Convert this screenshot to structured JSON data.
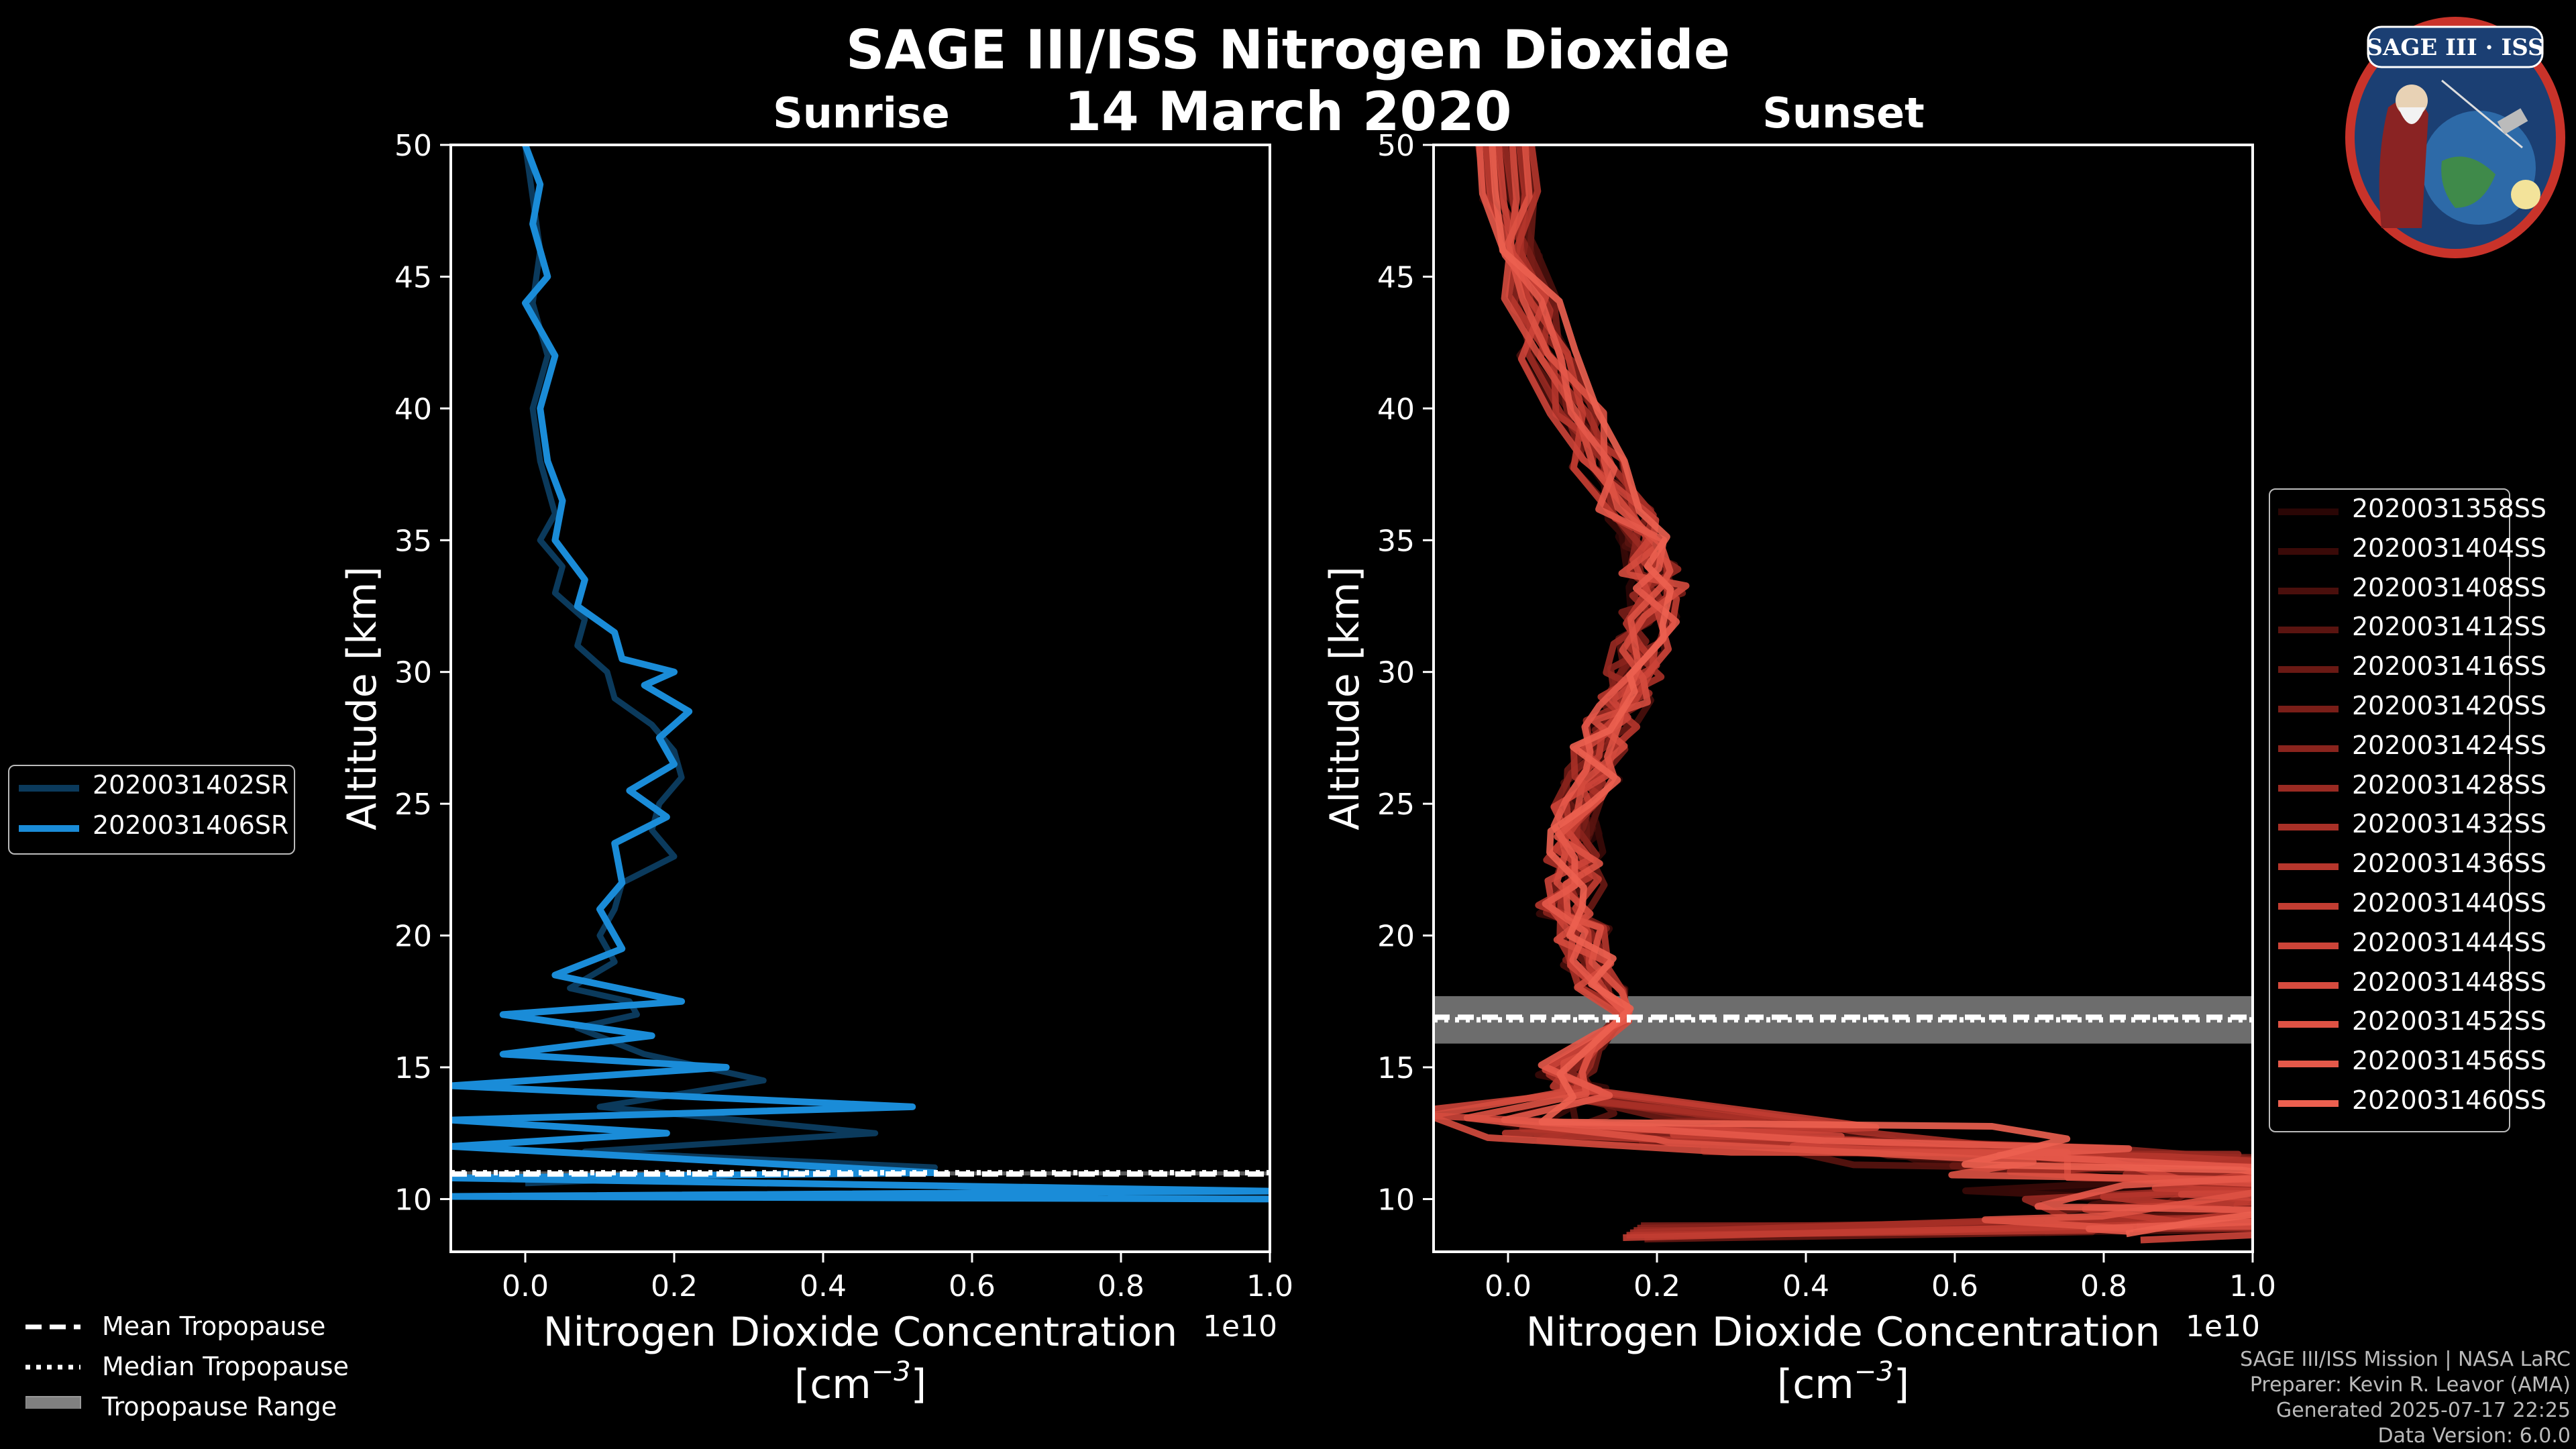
{
  "title": "SAGE III/ISS Nitrogen Dioxide",
  "date": "14 March 2020",
  "credits": {
    "mission": "SAGE III/ISS Mission | NASA LaRC",
    "preparer": "Preparer: Kevin R. Leavor (AMA)",
    "generated": "Generated 2025-07-17 22:25",
    "version": "Data Version: 6.0.0"
  },
  "logo": {
    "name": "SAGE III · ISS",
    "icon": "mission-patch"
  },
  "tropopause_legend": [
    "Mean Tropopause",
    "Median Tropopause",
    "Tropopause Range"
  ],
  "chart_data": [
    {
      "type": "line",
      "title": "Sunrise",
      "xlabel": "Nitrogen Dioxide Concentration",
      "xunit": "[cm$^{-3}$]",
      "xunit_text": "[cm",
      "xunit_exp": "−3",
      "xunit_close": "]",
      "xscale_label": "1e10",
      "ylabel": "Altitude [km]",
      "xlim": [
        -0.1,
        1.0
      ],
      "ylim": [
        8,
        50
      ],
      "xticks": [
        "0.0",
        "0.2",
        "0.4",
        "0.6",
        "0.8",
        "1.0"
      ],
      "yticks": [
        "10",
        "15",
        "20",
        "25",
        "30",
        "35",
        "40",
        "45",
        "50"
      ],
      "tropopause": {
        "mean": 10.95,
        "median": 11.0,
        "range": [
          10.9,
          11.05
        ]
      },
      "series": [
        {
          "name": "2020031402SR",
          "color": "#0b3a5c",
          "x": [
            0.0,
            0.01,
            0.02,
            0.01,
            0.03,
            0.01,
            0.02,
            0.04,
            0.02,
            0.05,
            0.04,
            0.08,
            0.07,
            0.11,
            0.12,
            0.17,
            0.2,
            0.21,
            0.18,
            0.17,
            0.2,
            0.13,
            0.12,
            0.1,
            0.12,
            0.06,
            0.14,
            0.15,
            0.07,
            0.16,
            0.32,
            0.1,
            0.47,
            0.08,
            0.55,
            0.0
          ],
          "y": [
            50,
            48,
            46,
            44,
            42,
            40,
            38,
            36,
            35,
            34,
            33,
            32,
            31,
            30,
            29,
            28,
            27,
            26,
            25,
            24,
            23,
            22,
            21,
            20,
            19,
            18,
            17.5,
            17,
            16.5,
            15.5,
            14.5,
            13.5,
            12.5,
            11.8,
            11.2,
            10.6
          ]
        },
        {
          "name": "2020031406SR",
          "color": "#1a8cd8",
          "x": [
            0.0,
            0.02,
            0.01,
            0.03,
            0.0,
            0.04,
            0.02,
            0.03,
            0.05,
            0.04,
            0.08,
            0.07,
            0.12,
            0.13,
            0.2,
            0.16,
            0.22,
            0.18,
            0.2,
            0.14,
            0.19,
            0.12,
            0.13,
            0.1,
            0.13,
            0.04,
            0.21,
            -0.03,
            0.17,
            -0.03,
            0.27,
            -0.1,
            0.52,
            -0.1,
            0.19,
            -0.1,
            0.55,
            -0.1,
            1.0,
            -0.1,
            1.0
          ],
          "y": [
            50,
            48.5,
            47,
            45,
            44,
            42,
            40,
            38,
            36.5,
            35,
            33.5,
            32.5,
            31.5,
            30.5,
            30,
            29.5,
            28.5,
            27.5,
            26.5,
            25.5,
            24.5,
            23.5,
            22,
            21,
            19.5,
            18.5,
            17.5,
            17,
            16.2,
            15.5,
            15,
            14.3,
            13.5,
            13,
            12.5,
            12,
            11,
            10.8,
            10.3,
            10.1,
            10.0
          ]
        }
      ]
    },
    {
      "type": "line",
      "title": "Sunset",
      "xlabel": "Nitrogen Dioxide Concentration",
      "xunit": "[cm$^{-3}$]",
      "xunit_text": "[cm",
      "xunit_exp": "−3",
      "xunit_close": "]",
      "xscale_label": "1e10",
      "ylabel": "Altitude [km]",
      "xlim": [
        -0.1,
        1.0
      ],
      "ylim": [
        8,
        50
      ],
      "xticks": [
        "0.0",
        "0.2",
        "0.4",
        "0.6",
        "0.8",
        "1.0"
      ],
      "yticks": [
        "10",
        "15",
        "20",
        "25",
        "30",
        "35",
        "40",
        "45",
        "50"
      ],
      "tropopause": {
        "mean": 16.9,
        "median": 16.8,
        "range": [
          15.9,
          17.7
        ]
      },
      "series": [
        {
          "name": "2020031358SS",
          "color": "#2a0605"
        },
        {
          "name": "2020031404SS",
          "color": "#3a0a08"
        },
        {
          "name": "2020031408SS",
          "color": "#4a0f0c"
        },
        {
          "name": "2020031412SS",
          "color": "#5a1410"
        },
        {
          "name": "2020031416SS",
          "color": "#6a1914"
        },
        {
          "name": "2020031420SS",
          "color": "#7a1e18"
        },
        {
          "name": "2020031424SS",
          "color": "#8a241d"
        },
        {
          "name": "2020031428SS",
          "color": "#9a2a22"
        },
        {
          "name": "2020031432SS",
          "color": "#a83027"
        },
        {
          "name": "2020031436SS",
          "color": "#b6362c"
        },
        {
          "name": "2020031440SS",
          "color": "#c23d32"
        },
        {
          "name": "2020031444SS",
          "color": "#cc4438"
        },
        {
          "name": "2020031448SS",
          "color": "#d54b3e"
        },
        {
          "name": "2020031452SS",
          "color": "#de5244"
        },
        {
          "name": "2020031456SS",
          "color": "#e5594a"
        },
        {
          "name": "2020031460SS",
          "color": "#ec6050"
        }
      ],
      "profile_template": {
        "y": [
          50,
          48,
          46,
          44,
          42,
          40,
          38,
          36,
          35,
          34,
          33,
          32,
          31,
          30,
          29,
          28,
          27,
          26,
          25,
          24,
          23,
          22,
          21,
          20,
          19,
          18,
          17,
          16,
          15,
          14,
          13,
          12.5,
          12,
          11.5,
          11,
          10.5,
          10,
          9.5,
          9,
          8.7
        ],
        "x": [
          0.0,
          0.0,
          0.01,
          0.03,
          0.05,
          0.09,
          0.12,
          0.16,
          0.18,
          0.19,
          0.2,
          0.19,
          0.18,
          0.17,
          0.16,
          0.14,
          0.12,
          0.11,
          0.1,
          0.09,
          0.09,
          0.09,
          0.08,
          0.1,
          0.11,
          0.12,
          0.13,
          0.1,
          0.08,
          0.1,
          0.15,
          0.3,
          0.5,
          0.8,
          0.9,
          0.95,
          1.0,
          1.0,
          0.9,
          0.5
        ]
      }
    }
  ]
}
